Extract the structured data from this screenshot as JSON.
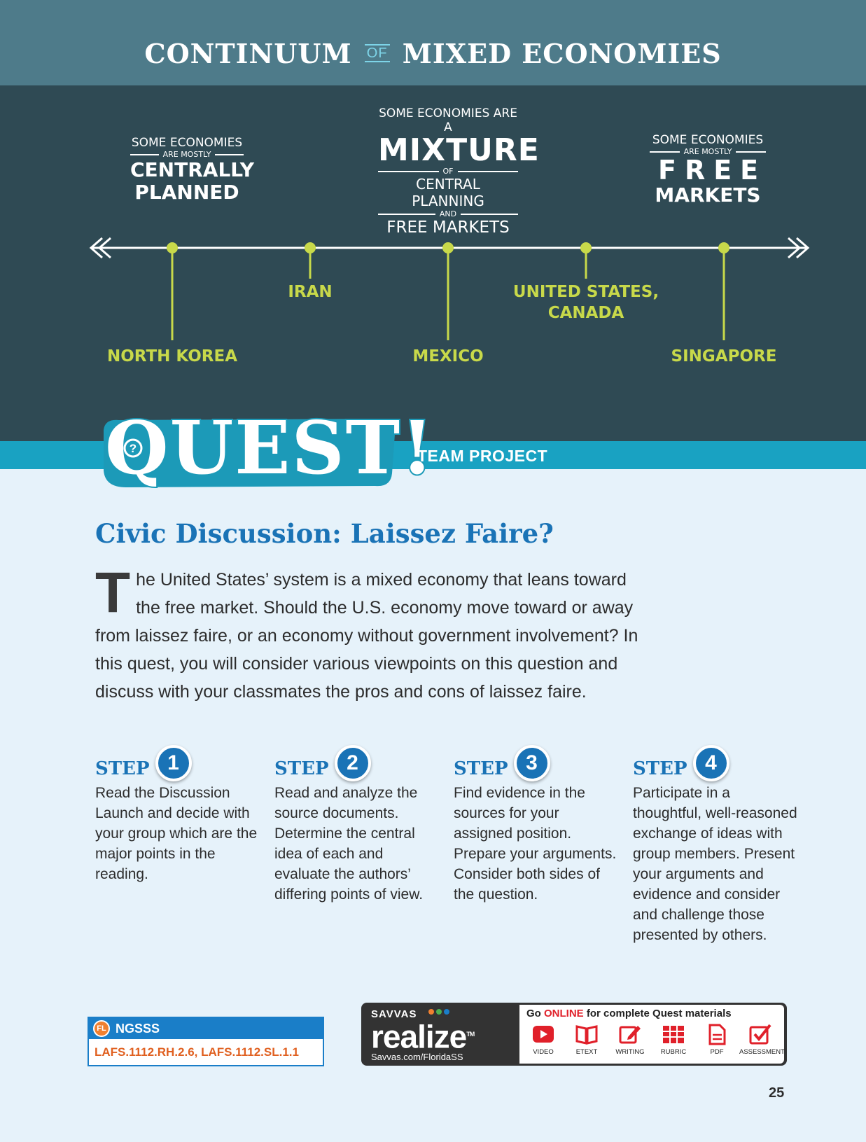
{
  "header": {
    "title_part1": "CONTINUUM",
    "title_of": "OF",
    "title_part2": "MIXED ECONOMIES"
  },
  "continuum": {
    "left": {
      "line1": "SOME ECONOMIES",
      "line2": "ARE MOSTLY",
      "line3": "CENTRALLY",
      "line4": "PLANNED"
    },
    "middle": {
      "line1": "SOME ECONOMIES ARE A",
      "line2": "MIXTURE",
      "line3": "OF",
      "line4": "CENTRAL PLANNING",
      "line5": "AND",
      "line6": "FREE MARKETS"
    },
    "right": {
      "line1": "SOME ECONOMIES",
      "line2": "ARE MOSTLY",
      "line3": "FREE",
      "line4": "MARKETS"
    },
    "countries": {
      "north_korea": "NORTH KOREA",
      "iran": "IRAN",
      "mexico": "MEXICO",
      "us_canada_line1": "UNITED STATES,",
      "us_canada_line2": "CANADA",
      "singapore": "SINGAPORE"
    }
  },
  "quest": {
    "word": "QUEST!",
    "subtitle": "TEAM PROJECT",
    "section_title": "Civic Discussion: Laissez Faire?",
    "intro_dropcap": "T",
    "intro_rest": "he United States’ system is a mixed economy that leans toward the free market. Should the U.S. economy move toward or away from laissez faire, or an economy without government involvement? In this quest, you will consider various viewpoints on this question and discuss with your classmates the pros and cons of laissez faire."
  },
  "steps": [
    {
      "label": "STEP",
      "number": "1",
      "text": "Read the Discussion Launch and decide with your group which are the major points in the reading."
    },
    {
      "label": "STEP",
      "number": "2",
      "text": "Read and analyze the source documents. Determine the central idea of each and evaluate the authors’ differing points of view."
    },
    {
      "label": "STEP",
      "number": "3",
      "text": "Find evidence in the sources for your assigned position. Prepare your arguments. Consider both sides of the question."
    },
    {
      "label": "STEP",
      "number": "4",
      "text": "Participate in a thoughtful, well-reasoned exchange of ideas with group members. Present your arguments and evidence and consider and challenge those presented by others."
    }
  ],
  "ngsss": {
    "badge": "FL",
    "label": "NGSSS",
    "codes": "LAFS.1112.RH.2.6, LAFS.1112.SL.1.1"
  },
  "realize": {
    "brand_top": "SAVVAS",
    "brand_word": "realize",
    "tm": "TM",
    "url": "Savvas.com/FloridaSS",
    "go_prefix": "Go ",
    "go_highlight": "ONLINE",
    "go_suffix": " for complete Quest materials",
    "icons": [
      {
        "name": "video-icon",
        "label": "VIDEO"
      },
      {
        "name": "etext-icon",
        "label": "ETEXT"
      },
      {
        "name": "writing-icon",
        "label": "WRITING"
      },
      {
        "name": "rubric-icon",
        "label": "RUBRIC"
      },
      {
        "name": "pdf-icon",
        "label": "PDF"
      },
      {
        "name": "assessment-icon",
        "label": "ASSESSMENT"
      }
    ],
    "icon_color": "#e0202a"
  },
  "page_number": "25"
}
